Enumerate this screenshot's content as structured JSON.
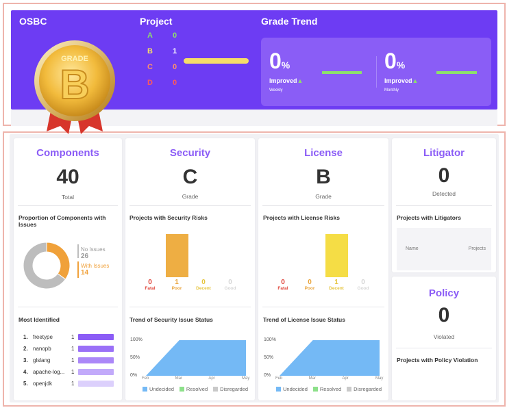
{
  "header": {
    "org": "OSBC",
    "project_title": "Project",
    "trend_title": "Grade Trend",
    "medal_label": "GRADE",
    "medal_grade": "B"
  },
  "grades": [
    {
      "label": "A",
      "count": "0",
      "color": "#8de06b"
    },
    {
      "label": "B",
      "count": "1",
      "color": "#f5dd6a"
    },
    {
      "label": "C",
      "count": "0",
      "color": "#ff8f6b"
    },
    {
      "label": "D",
      "count": "0",
      "color": "#ff5a5a"
    }
  ],
  "grade_progress": 1.0,
  "trend": {
    "weekly": {
      "value": "0",
      "unit": "%",
      "improved": "Improved",
      "arrow": "▲",
      "period": "Weekly"
    },
    "monthly": {
      "value": "0",
      "unit": "%",
      "improved": "Improved",
      "arrow": "▲",
      "period": "Monthly"
    }
  },
  "components": {
    "title": "Components",
    "total": "40",
    "total_label": "Total",
    "proportion_label": "Proportion of Components with Issues",
    "no_issues_label": "No Issues",
    "no_issues_value": "26",
    "with_issues_label": "With Issues",
    "with_issues_value": "14",
    "most_identified_label": "Most Identified",
    "top": [
      {
        "rank": "1.",
        "name": "freetype",
        "count": "1",
        "color": "#8b5cf6"
      },
      {
        "rank": "2.",
        "name": "nanopb",
        "count": "1",
        "color": "#9a70f7"
      },
      {
        "rank": "3.",
        "name": "glslang",
        "count": "1",
        "color": "#ab87f8"
      },
      {
        "rank": "4.",
        "name": "apache-log...",
        "count": "1",
        "color": "#c2aafa"
      },
      {
        "rank": "5.",
        "name": "openjdk",
        "count": "1",
        "color": "#dcd0fc"
      }
    ]
  },
  "security": {
    "title": "Security",
    "grade": "C",
    "grade_label": "Grade",
    "risks_label": "Projects with Security Risks",
    "trend_label": "Trend of Security Issue Status"
  },
  "license": {
    "title": "License",
    "grade": "B",
    "grade_label": "Grade",
    "risks_label": "Projects with License Risks",
    "trend_label": "Trend of License Issue Status"
  },
  "litigator": {
    "title": "Litigator",
    "value": "0",
    "label": "Detected",
    "section_label": "Projects with Litigators",
    "col_name": "Name",
    "col_projects": "Projects"
  },
  "policy": {
    "title": "Policy",
    "value": "0",
    "label": "Violated",
    "section_label": "Projects with Policy Violation"
  },
  "trend_legend": {
    "undecided": "Undecided",
    "resolved": "Resolved",
    "disregarded": "Disregarded",
    "colors": {
      "undecided": "#74b9f5",
      "resolved": "#8de08a",
      "disregarded": "#c9c9c9"
    }
  },
  "chart_data": [
    {
      "type": "pie",
      "labels": [
        "No Issues",
        "With Issues"
      ],
      "values": [
        26,
        14
      ],
      "colors": [
        "#bdbdbd",
        "#f0a13a"
      ]
    },
    {
      "type": "bar",
      "categories": [
        "Fatal",
        "Poor",
        "Decent",
        "Good"
      ],
      "values": [
        0,
        1,
        0,
        0
      ],
      "label_colors": [
        "#e0453a",
        "#e9a43b",
        "#e6c53f",
        "#d6d6d6"
      ],
      "bar_color": "#eeae43",
      "ylim": [
        0,
        1
      ]
    },
    {
      "type": "bar",
      "categories": [
        "Fatal",
        "Poor",
        "Decent",
        "Good"
      ],
      "values": [
        0,
        0,
        1,
        0
      ],
      "label_colors": [
        "#e0453a",
        "#e9a43b",
        "#e6c53f",
        "#d6d6d6"
      ],
      "bar_color": "#f5dd45",
      "ylim": [
        0,
        1
      ]
    },
    {
      "type": "area",
      "x": [
        "Feb",
        "Mar",
        "Apr",
        "May"
      ],
      "y_ticks": [
        "100%",
        "50%",
        "0%"
      ],
      "series": [
        {
          "name": "Undecided",
          "values": [
            0,
            100,
            100,
            100
          ]
        },
        {
          "name": "Resolved",
          "values": [
            0,
            0,
            0,
            0
          ]
        },
        {
          "name": "Disregarded",
          "values": [
            0,
            0,
            0,
            0
          ]
        }
      ],
      "ylim": [
        0,
        100
      ]
    },
    {
      "type": "area",
      "x": [
        "Feb",
        "Mar",
        "Apr",
        "May"
      ],
      "y_ticks": [
        "100%",
        "50%",
        "0%"
      ],
      "series": [
        {
          "name": "Undecided",
          "values": [
            0,
            100,
            100,
            100
          ]
        },
        {
          "name": "Resolved",
          "values": [
            0,
            0,
            0,
            0
          ]
        },
        {
          "name": "Disregarded",
          "values": [
            0,
            0,
            0,
            0
          ]
        }
      ],
      "ylim": [
        0,
        100
      ]
    }
  ]
}
